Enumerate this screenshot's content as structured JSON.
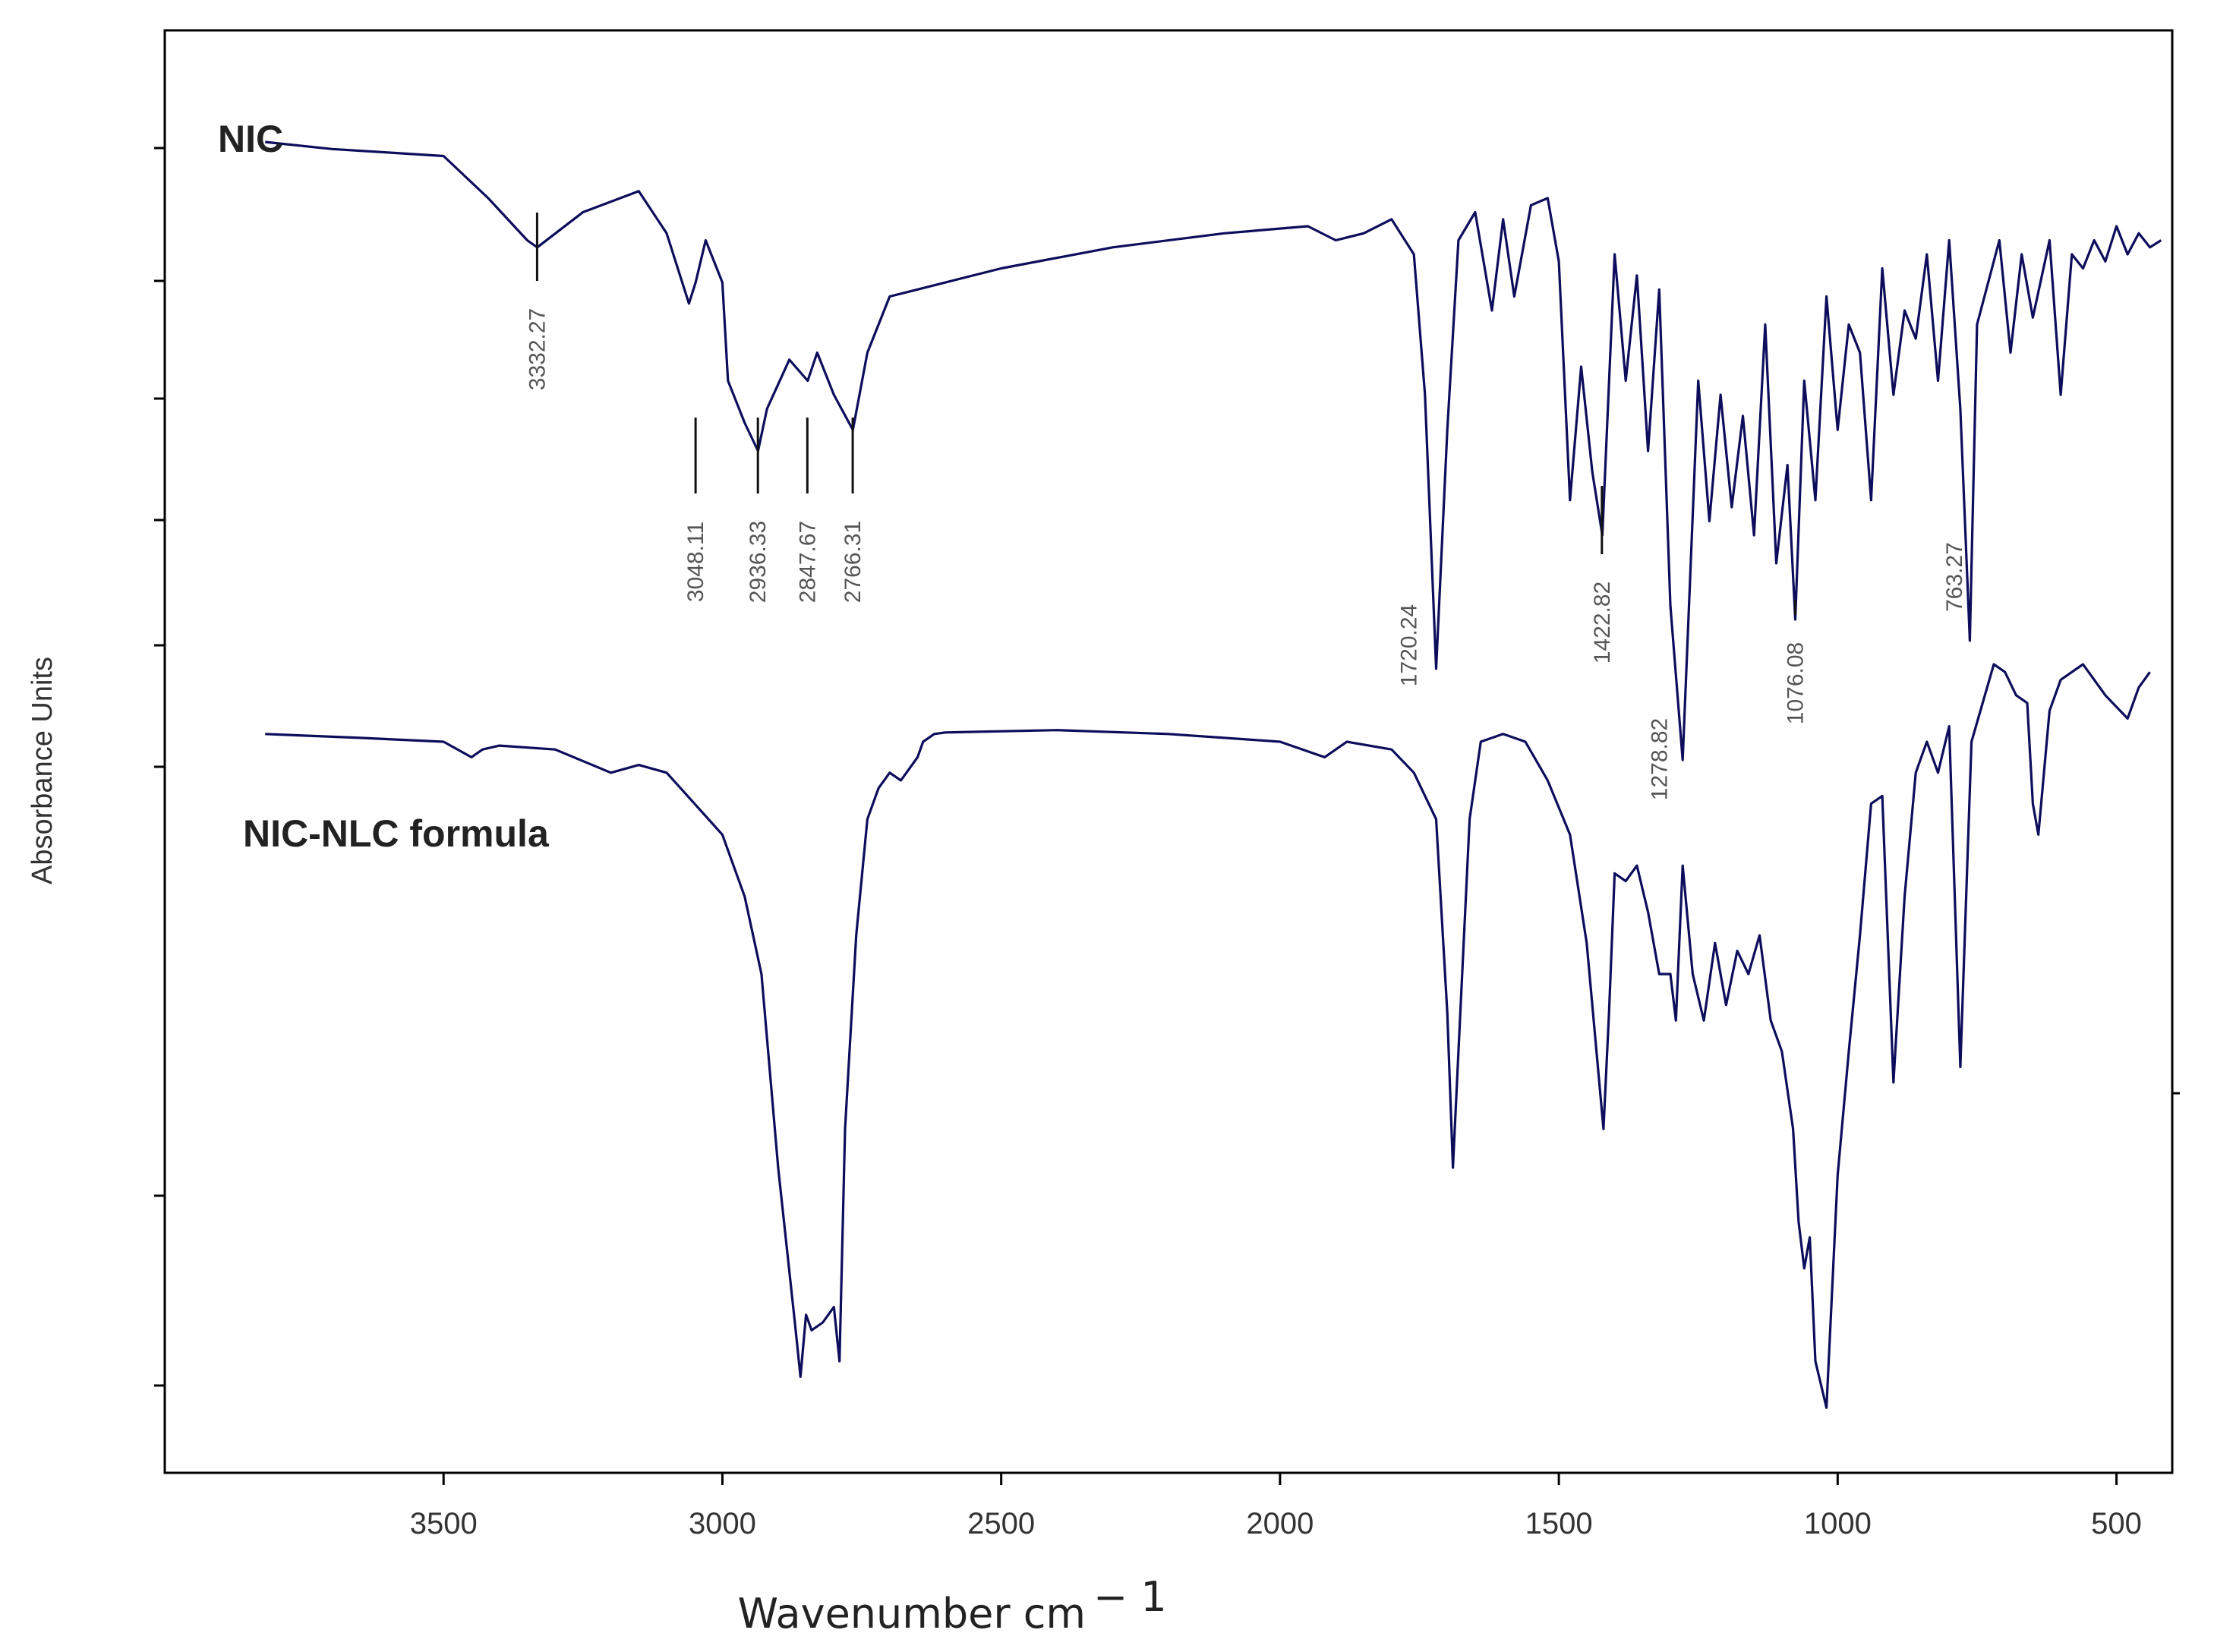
{
  "chart_data": {
    "type": "line",
    "title": "",
    "xlabel": "Wavenumber cm",
    "xlabel_superscript": "− 1",
    "ylabel": "Absorbance Units",
    "xlim": [
      4000,
      400
    ],
    "x_reversed": true,
    "x_ticks": [
      3500,
      3000,
      2500,
      2000,
      1500,
      1000,
      500
    ],
    "grid": false,
    "line_color": "#0d0d5c",
    "series": [
      {
        "name": "NIC",
        "peaks": [
          "3332.27",
          "3048.11",
          "2936.33",
          "2847.67",
          "2766.31",
          "1720.24",
          "1422.82",
          "1278.82",
          "1076.08",
          "763.27"
        ],
        "x": [
          3820,
          3700,
          3600,
          3500,
          3420,
          3350,
          3332,
          3250,
          3150,
          3100,
          3060,
          3048,
          3030,
          3000,
          2990,
          2960,
          2936,
          2920,
          2880,
          2847,
          2830,
          2800,
          2766,
          2740,
          2700,
          2650,
          2500,
          2300,
          2100,
          1950,
          1900,
          1850,
          1800,
          1760,
          1740,
          1720,
          1700,
          1680,
          1650,
          1620,
          1600,
          1580,
          1550,
          1520,
          1500,
          1480,
          1460,
          1440,
          1422,
          1400,
          1380,
          1360,
          1340,
          1320,
          1300,
          1278,
          1250,
          1230,
          1210,
          1190,
          1170,
          1150,
          1130,
          1110,
          1090,
          1076,
          1060,
          1040,
          1020,
          1000,
          980,
          960,
          940,
          920,
          900,
          880,
          860,
          840,
          820,
          800,
          780,
          763,
          750,
          730,
          710,
          690,
          670,
          650,
          620,
          600,
          580,
          560,
          540,
          520,
          500,
          480,
          460,
          440,
          420
        ],
        "y": [
          0.96,
          0.95,
          0.945,
          0.94,
          0.88,
          0.82,
          0.81,
          0.86,
          0.89,
          0.83,
          0.73,
          0.76,
          0.82,
          0.76,
          0.62,
          0.56,
          0.52,
          0.58,
          0.65,
          0.62,
          0.66,
          0.6,
          0.55,
          0.66,
          0.74,
          0.75,
          0.78,
          0.81,
          0.83,
          0.84,
          0.82,
          0.83,
          0.85,
          0.8,
          0.6,
          0.21,
          0.55,
          0.82,
          0.86,
          0.72,
          0.85,
          0.74,
          0.87,
          0.88,
          0.79,
          0.45,
          0.64,
          0.49,
          0.4,
          0.8,
          0.62,
          0.77,
          0.52,
          0.75,
          0.3,
          0.08,
          0.62,
          0.42,
          0.6,
          0.44,
          0.57,
          0.4,
          0.7,
          0.36,
          0.5,
          0.28,
          0.62,
          0.45,
          0.74,
          0.55,
          0.7,
          0.66,
          0.45,
          0.78,
          0.6,
          0.72,
          0.68,
          0.8,
          0.62,
          0.82,
          0.58,
          0.25,
          0.7,
          0.76,
          0.82,
          0.66,
          0.8,
          0.71,
          0.82,
          0.6,
          0.8,
          0.78,
          0.82,
          0.79,
          0.84,
          0.8,
          0.83,
          0.81,
          0.82
        ]
      },
      {
        "name": "NIC-NLC formula",
        "peaks": [],
        "x": [
          3820,
          3650,
          3500,
          3450,
          3430,
          3400,
          3300,
          3200,
          3150,
          3100,
          3050,
          3000,
          2960,
          2930,
          2900,
          2870,
          2860,
          2850,
          2840,
          2820,
          2800,
          2790,
          2780,
          2760,
          2740,
          2720,
          2700,
          2680,
          2660,
          2650,
          2640,
          2620,
          2600,
          2400,
          2200,
          2000,
          1920,
          1900,
          1880,
          1800,
          1760,
          1720,
          1700,
          1690,
          1680,
          1660,
          1640,
          1600,
          1560,
          1520,
          1480,
          1450,
          1420,
          1410,
          1400,
          1380,
          1360,
          1340,
          1320,
          1300,
          1290,
          1278,
          1260,
          1240,
          1220,
          1200,
          1180,
          1160,
          1140,
          1120,
          1100,
          1080,
          1070,
          1060,
          1050,
          1040,
          1020,
          1000,
          980,
          960,
          940,
          920,
          900,
          880,
          860,
          840,
          820,
          800,
          780,
          760,
          740,
          720,
          700,
          680,
          660,
          650,
          640,
          620,
          600,
          560,
          520,
          480,
          460,
          440
        ],
        "y": [
          0.91,
          0.905,
          0.9,
          0.88,
          0.89,
          0.895,
          0.89,
          0.86,
          0.87,
          0.86,
          0.82,
          0.78,
          0.7,
          0.6,
          0.35,
          0.15,
          0.08,
          0.16,
          0.14,
          0.15,
          0.17,
          0.1,
          0.4,
          0.65,
          0.8,
          0.84,
          0.86,
          0.85,
          0.87,
          0.88,
          0.9,
          0.91,
          0.912,
          0.915,
          0.91,
          0.9,
          0.88,
          0.89,
          0.9,
          0.89,
          0.86,
          0.8,
          0.55,
          0.35,
          0.5,
          0.8,
          0.9,
          0.91,
          0.9,
          0.85,
          0.78,
          0.64,
          0.4,
          0.55,
          0.73,
          0.72,
          0.74,
          0.68,
          0.6,
          0.6,
          0.54,
          0.74,
          0.6,
          0.54,
          0.64,
          0.56,
          0.63,
          0.6,
          0.65,
          0.54,
          0.5,
          0.4,
          0.28,
          0.22,
          0.26,
          0.1,
          0.04,
          0.34,
          0.5,
          0.65,
          0.82,
          0.83,
          0.46,
          0.7,
          0.86,
          0.9,
          0.86,
          0.92,
          0.48,
          0.9,
          0.95,
          1.0,
          0.99,
          0.96,
          0.95,
          0.82,
          0.78,
          0.94,
          0.98,
          1.0,
          0.96,
          0.93,
          0.97,
          0.99
        ]
      }
    ],
    "annotation_peaks": [
      {
        "series": "NIC",
        "label": "3332.27",
        "x": 3332.27
      },
      {
        "series": "NIC",
        "label": "3048.11",
        "x": 3048.11
      },
      {
        "series": "NIC",
        "label": "2936.33",
        "x": 2936.33
      },
      {
        "series": "NIC",
        "label": "2847.67",
        "x": 2847.67
      },
      {
        "series": "NIC",
        "label": "2766.31",
        "x": 2766.31
      },
      {
        "series": "NIC",
        "label": "1720.24",
        "x": 1720.24
      },
      {
        "series": "NIC",
        "label": "1422.82",
        "x": 1422.82
      },
      {
        "series": "NIC",
        "label": "1278.82",
        "x": 1278.82
      },
      {
        "series": "NIC",
        "label": "1076.08",
        "x": 1076.08
      },
      {
        "series": "NIC",
        "label": "763.27",
        "x": 763.27
      }
    ]
  }
}
